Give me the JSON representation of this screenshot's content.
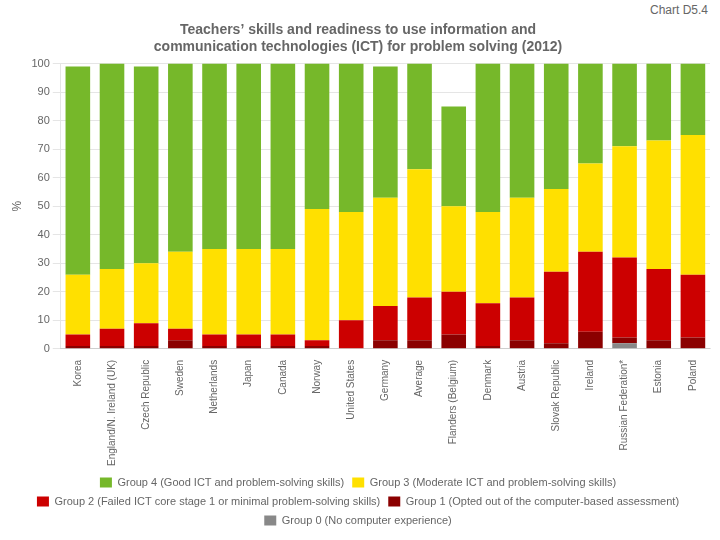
{
  "chart_data": {
    "type": "bar",
    "title": [
      "Teachers’ skills and readiness to use information and",
      "communication technologies (ICT) for problem solving (2012)"
    ],
    "annotations": [
      "Chart D5.4"
    ],
    "y_label": "%",
    "categories": [
      "Korea",
      "England/N. Ireland (UK)",
      "Czech Republic",
      "Sweden",
      "Netherlands",
      "Japan",
      "Canada",
      "Norway",
      "United States",
      "Germany",
      "Average",
      "Flanders (Belgium)",
      "Denmark",
      "Austria",
      "Slovak Republic",
      "Ireland",
      "Russian Federation*",
      "Estonia",
      "Poland"
    ],
    "series": [
      {
        "name": "Group 0 (No computer experience)",
        "color": "#888888",
        "values": [
          0,
          0,
          0,
          0,
          0,
          0,
          0,
          0,
          0,
          0,
          0,
          0,
          0,
          0,
          0,
          0,
          2,
          0,
          0
        ]
      },
      {
        "name": "Group 1 (Opted out of the computer-based assessment)",
        "color": "#8b0000",
        "values": [
          1,
          1,
          1,
          3,
          1,
          1,
          1,
          1,
          0,
          3,
          3,
          5,
          1,
          3,
          2,
          6,
          2,
          3,
          4
        ]
      },
      {
        "name": "Group 2 (Failed ICT core stage 1 or minimal problem-solving skills)",
        "color": "#cc0000",
        "values": [
          4,
          6,
          8,
          4,
          4,
          4,
          4,
          2,
          10,
          12,
          15,
          15,
          15,
          15,
          25,
          28,
          28,
          25,
          22
        ]
      },
      {
        "name": "Group 3 (Moderate ICT and problem-solving skills)",
        "color": "#ffe000",
        "values": [
          21,
          21,
          21,
          27,
          30,
          30,
          30,
          46,
          38,
          38,
          45,
          30,
          32,
          35,
          29,
          31,
          39,
          45,
          49
        ]
      },
      {
        "name": "Group 4 (Good ICT and problem-solving skills)",
        "color": "#76b82a",
        "values": [
          73,
          72,
          69,
          66,
          65,
          65,
          65,
          51,
          52,
          46,
          37,
          35,
          52,
          47,
          44,
          35,
          29,
          27,
          25
        ]
      }
    ],
    "stacked": true,
    "ylim": [
      0,
      100
    ],
    "yticks": [
      0,
      10,
      20,
      30,
      40,
      50,
      60,
      70,
      80,
      90,
      100
    ],
    "grid": true,
    "legend": "bottom"
  }
}
